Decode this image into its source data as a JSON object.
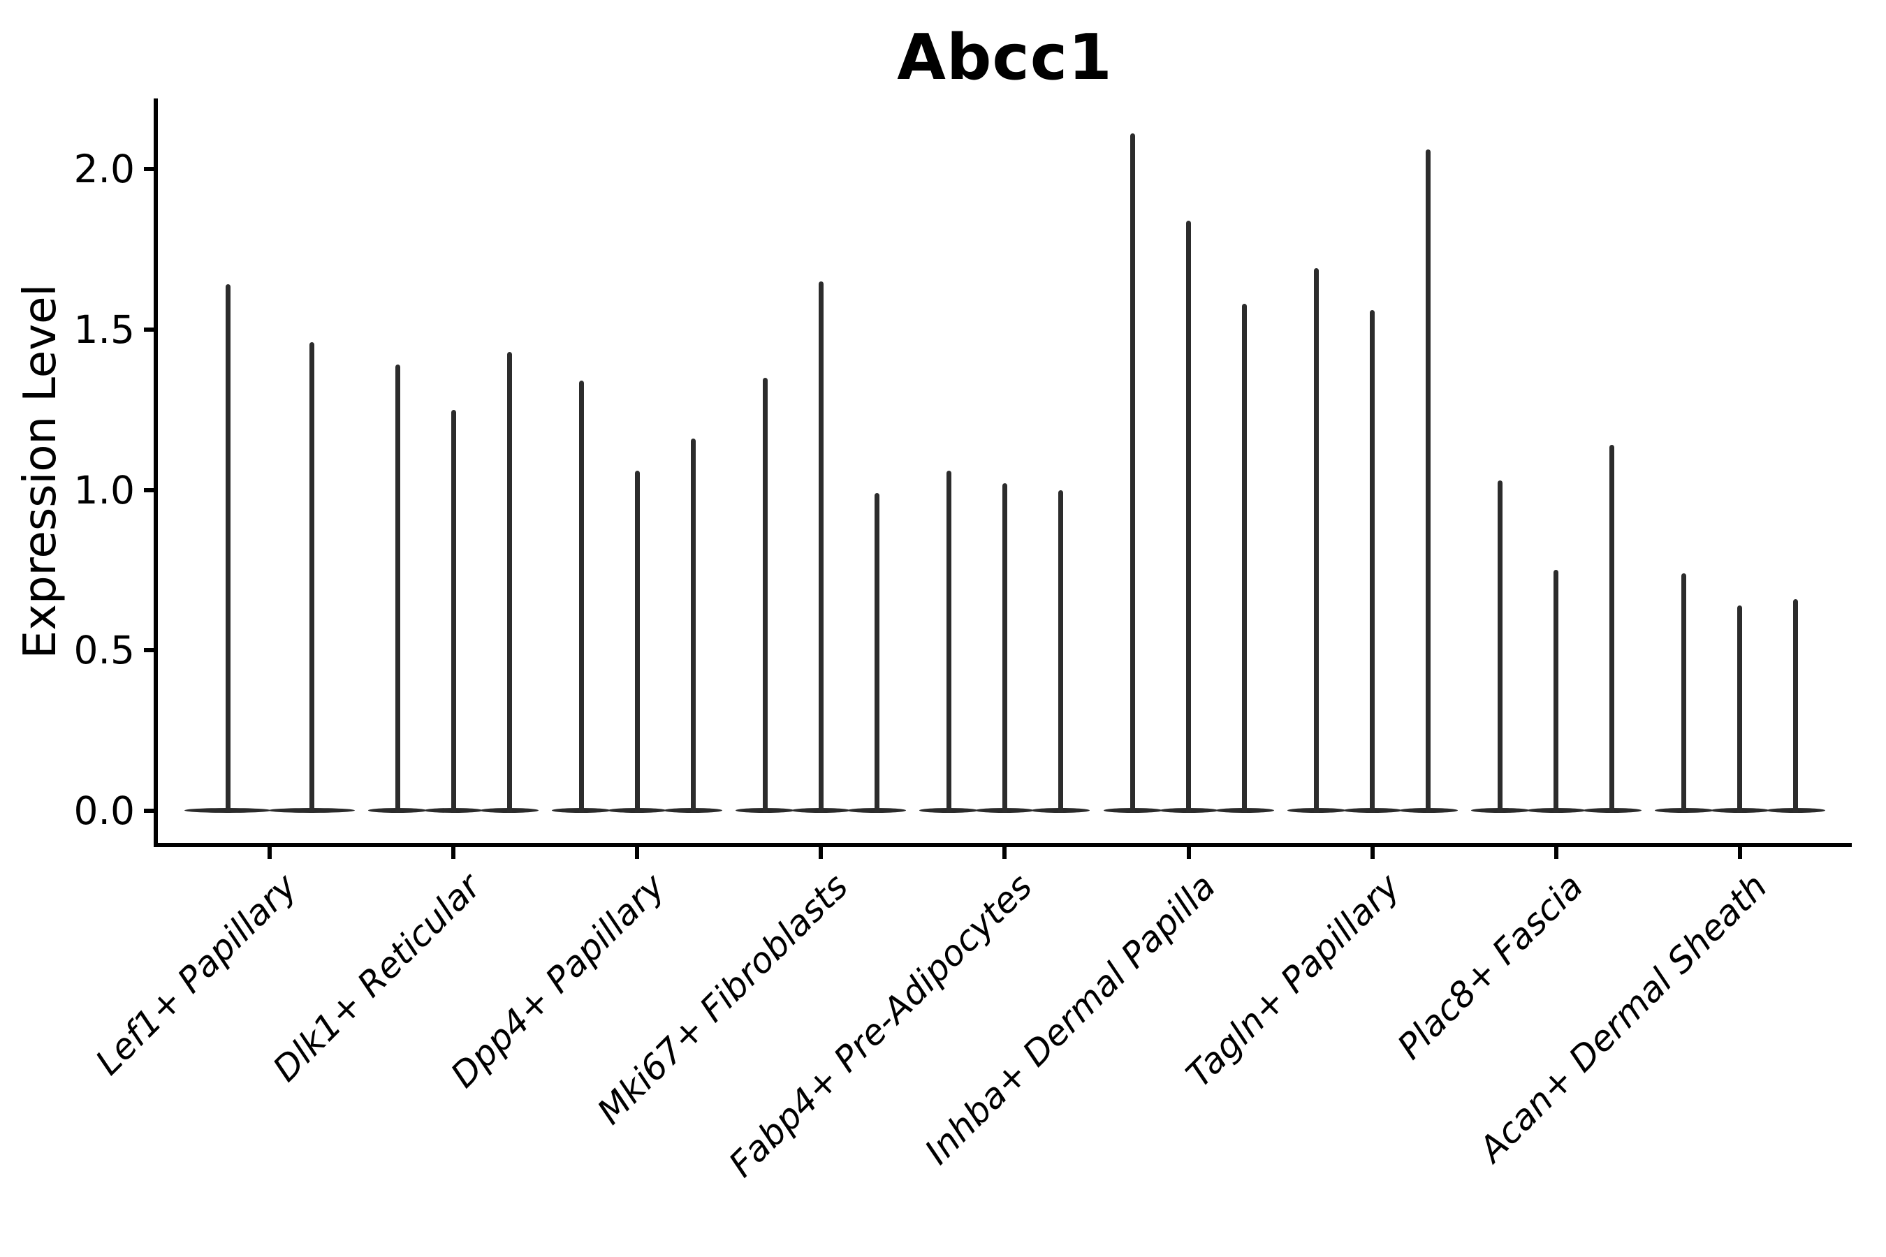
{
  "figure": {
    "title": "Abcc1",
    "ylabel": "Expression Level"
  },
  "chart_data": {
    "type": "violin",
    "title": "Abcc1",
    "xlabel": "",
    "ylabel": "Expression Level",
    "ylim": [
      -0.1,
      2.2
    ],
    "yticks": [
      0.0,
      0.5,
      1.0,
      1.5,
      2.0
    ],
    "grid": false,
    "legend": "none",
    "x_tick_rotation": 45,
    "categories": [
      "Lef1+ Papillary",
      "Dlk1+ Reticular",
      "Dpp4+ Papillary",
      "Mki67+ Fibroblasts",
      "Fabp4+ Pre-Adipocytes",
      "Inhba+ Dermal Papilla",
      "Tagln+ Papillary",
      "Plac8+ Fascia",
      "Acan+ Dermal Sheath"
    ],
    "groups": [
      {
        "category": "Lef1+ Papillary",
        "violin_maxima": [
          1.64,
          1.46
        ]
      },
      {
        "category": "Dlk1+ Reticular",
        "violin_maxima": [
          1.39,
          1.25,
          1.43
        ]
      },
      {
        "category": "Dpp4+ Papillary",
        "violin_maxima": [
          1.34,
          1.06,
          1.16
        ]
      },
      {
        "category": "Mki67+ Fibroblasts",
        "violin_maxima": [
          1.35,
          1.65,
          0.99
        ]
      },
      {
        "category": "Fabp4+ Pre-Adipocytes",
        "violin_maxima": [
          1.06,
          1.02,
          1.0
        ]
      },
      {
        "category": "Inhba+ Dermal Papilla",
        "violin_maxima": [
          2.11,
          1.84,
          1.58
        ]
      },
      {
        "category": "Tagln+ Papillary",
        "violin_maxima": [
          1.69,
          1.56,
          2.06
        ]
      },
      {
        "category": "Plac8+ Fascia",
        "violin_maxima": [
          1.03,
          0.75,
          1.14
        ]
      },
      {
        "category": "Acan+ Dermal Sheath",
        "violin_maxima": [
          0.74,
          0.64,
          0.66
        ]
      }
    ],
    "description": "Single-gene expression violin plot; each violin collapses to a thin spike with the distribution bulk flattened at 0."
  },
  "colors": {
    "violin": "#2c2c2c",
    "axis": "#000000",
    "text": "#000000",
    "background": "#ffffff"
  }
}
